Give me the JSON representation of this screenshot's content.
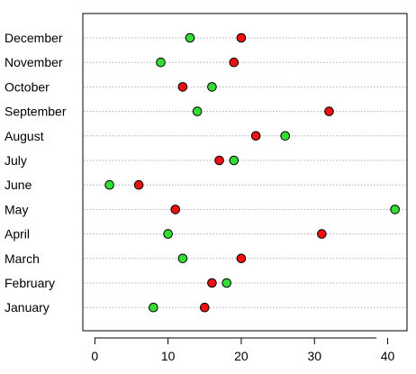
{
  "chart_data": {
    "type": "scatter",
    "categories": [
      "December",
      "November",
      "October",
      "September",
      "August",
      "July",
      "June",
      "May",
      "April",
      "March",
      "February",
      "January"
    ],
    "series": [
      {
        "color": "#33dd33",
        "values": [
          13,
          9,
          16,
          14,
          26,
          19,
          2,
          41,
          10,
          12,
          18,
          8
        ]
      },
      {
        "color": "#ee1111",
        "values": [
          20,
          19,
          12,
          32,
          22,
          17,
          6,
          11,
          31,
          20,
          16,
          15
        ]
      }
    ],
    "x_ticks": [
      0,
      10,
      20,
      30,
      40
    ],
    "xlim": [
      -1.64,
      42.64
    ],
    "grid": "horizontal dotted lines per category",
    "legend": "none"
  }
}
